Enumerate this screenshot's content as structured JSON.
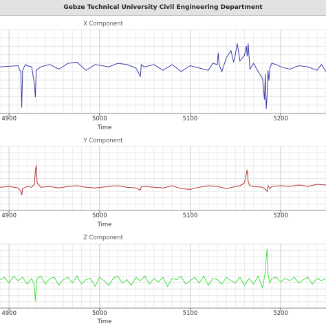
{
  "window": {
    "title": "Gebze Technical University Civil Engineering Department"
  },
  "chart_data": [
    {
      "type": "line",
      "title": "X Component",
      "xlabel": "Time",
      "x_ticks": [
        4900,
        5000,
        5100,
        5200
      ],
      "xlim": [
        4890,
        5250
      ],
      "grid": true,
      "color": "#3a3aaa",
      "series": [
        {
          "x": [
            4890,
            4910,
            4913,
            4914,
            4915,
            4918,
            4920,
            4925,
            4928,
            4929,
            4930,
            4935,
            4945,
            4955,
            4965,
            4975,
            4985,
            4995,
            5010,
            5020,
            5030,
            5040,
            5045,
            5046,
            5047,
            5050,
            5060,
            5070,
            5080,
            5090,
            5100,
            5110,
            5120,
            5125,
            5130,
            5131,
            5132,
            5135,
            5140,
            5145,
            5148,
            5150,
            5152,
            5155,
            5160,
            5162,
            5163,
            5164,
            5166,
            5170,
            5175,
            5180,
            5182,
            5183,
            5184,
            5185,
            5186,
            5187,
            5188,
            5190,
            5195,
            5200,
            5210,
            5220,
            5230,
            5240,
            5245,
            5250
          ],
          "y": [
            0,
            0.1,
            -0.5,
            -3.5,
            -0.3,
            0.2,
            0.1,
            0,
            -1.5,
            -2.6,
            -0.3,
            0,
            0.2,
            -0.2,
            0.3,
            0.4,
            -0.3,
            0.2,
            0,
            0.3,
            0.2,
            -0.1,
            -0.8,
            0.2,
            0.1,
            0,
            0.2,
            -0.3,
            0.2,
            -0.4,
            0.1,
            -0.1,
            -0.3,
            0.3,
            0.2,
            1.2,
            0.2,
            -0.4,
            0.8,
            1.4,
            0.4,
            1.1,
            2.0,
            0.5,
            1.0,
            1.8,
            0.9,
            2.0,
            -0.2,
            0.3,
            -0.4,
            -1.0,
            -2.8,
            -0.6,
            -3.6,
            -2.4,
            -0.3,
            -1.2,
            -0.1,
            0.3,
            0.2,
            0,
            -0.2,
            0.1,
            0,
            -0.3,
            0.2,
            -0.4
          ]
        }
      ]
    },
    {
      "type": "line",
      "title": "Y Component",
      "xlabel": "Time",
      "x_ticks": [
        4900,
        5000,
        5100,
        5200
      ],
      "xlim": [
        4890,
        5250
      ],
      "grid": true,
      "color": "#b03030",
      "series": [
        {
          "x": [
            4890,
            4900,
            4910,
            4913,
            4914,
            4915,
            4920,
            4925,
            4928,
            4929,
            4930,
            4931,
            4935,
            4945,
            4955,
            4965,
            4975,
            4985,
            4995,
            5010,
            5020,
            5030,
            5040,
            5045,
            5046,
            5050,
            5060,
            5070,
            5080,
            5090,
            5100,
            5110,
            5120,
            5130,
            5140,
            5150,
            5155,
            5160,
            5162,
            5163,
            5164,
            5166,
            5170,
            5180,
            5184,
            5185,
            5186,
            5188,
            5190,
            5200,
            5210,
            5220,
            5230,
            5240,
            5250
          ],
          "y": [
            0,
            0.05,
            -0.05,
            -0.3,
            -0.55,
            -0.1,
            0.05,
            0,
            0.2,
            1.1,
            1.5,
            0.3,
            0,
            0.05,
            -0.05,
            0.05,
            0.1,
            0,
            -0.05,
            0.05,
            0.1,
            0,
            -0.05,
            -0.2,
            0.05,
            0.05,
            0,
            -0.05,
            0.1,
            -0.1,
            -0.15,
            0,
            0.1,
            0.05,
            -0.1,
            0.05,
            0.1,
            0.3,
            0.9,
            1.2,
            0.4,
            0.1,
            0.05,
            0,
            -0.2,
            -0.3,
            0.1,
            -0.1,
            0.05,
            0.1,
            0.05,
            0.15,
            0.05,
            0.2,
            0.15
          ]
        }
      ]
    },
    {
      "type": "line",
      "title": "Z Component",
      "xlabel": "Time",
      "x_ticks": [
        4900,
        5000,
        5100,
        5200
      ],
      "xlim": [
        4890,
        5250
      ],
      "grid": true,
      "color": "#44dd44",
      "series": [
        {
          "x": [
            4890,
            4895,
            4900,
            4905,
            4910,
            4915,
            4920,
            4925,
            4928,
            4929,
            4930,
            4931,
            4935,
            4940,
            4945,
            4950,
            4955,
            4960,
            4965,
            4970,
            4975,
            4980,
            4985,
            4990,
            4995,
            5000,
            5005,
            5010,
            5015,
            5020,
            5025,
            5030,
            5035,
            5040,
            5045,
            5050,
            5055,
            5060,
            5065,
            5070,
            5075,
            5080,
            5085,
            5090,
            5095,
            5100,
            5105,
            5110,
            5115,
            5120,
            5125,
            5130,
            5135,
            5140,
            5145,
            5150,
            5155,
            5160,
            5165,
            5170,
            5175,
            5180,
            5183,
            5184,
            5185,
            5186,
            5188,
            5190,
            5195,
            5200,
            5205,
            5210,
            5215,
            5220,
            5225,
            5230,
            5235,
            5240,
            5245,
            5250
          ],
          "y": [
            0.1,
            0.3,
            -0.2,
            0.4,
            0,
            0.3,
            -0.3,
            0.2,
            -0.4,
            -1.8,
            -0.5,
            0.2,
            0.4,
            -0.3,
            0.2,
            0.3,
            -0.4,
            0.1,
            0.3,
            -0.2,
            0.4,
            -0.3,
            0.1,
            0.2,
            -0.5,
            0.3,
            0,
            -0.4,
            0.2,
            0.4,
            -0.2,
            0.1,
            -0.4,
            0.3,
            0,
            0.4,
            -0.3,
            0.2,
            -0.1,
            0.3,
            -0.5,
            0.2,
            0.1,
            0.4,
            -0.3,
            0,
            0.3,
            -0.2,
            0.4,
            -0.4,
            0.2,
            0.1,
            -0.3,
            0.3,
            0,
            -0.2,
            0.3,
            -0.4,
            0.2,
            -0.3,
            0.4,
            -0.6,
            0.8,
            2.0,
            2.8,
            0.5,
            -0.2,
            0.2,
            0.3,
            -0.1,
            0.2,
            0,
            0.3,
            -0.2,
            0.1,
            0.3,
            -0.3,
            0.2,
            0,
            0.2
          ]
        }
      ]
    }
  ]
}
